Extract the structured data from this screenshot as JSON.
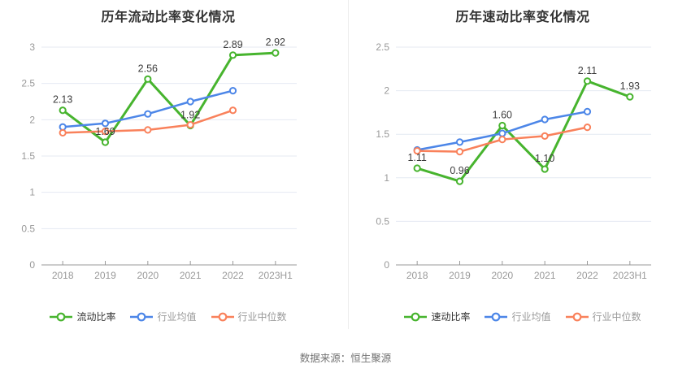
{
  "page": {
    "source": "数据来源：恒生聚源"
  },
  "colors": {
    "green": "#47b42e",
    "blue": "#4c86e8",
    "orange": "#f9815b",
    "grid": "#e4eaf2",
    "axis": "#999999",
    "axis_text": "#999999",
    "data_label": "#3c3c3c",
    "title": "#333333",
    "legend_active": "#333333",
    "legend_inactive": "#999999",
    "marker_fill": "#ffffff"
  },
  "chart_data": [
    {
      "type": "line",
      "title": "历年流动比率变化情况",
      "categories": [
        "2018",
        "2019",
        "2020",
        "2021",
        "2022",
        "2023H1"
      ],
      "y_ticks": [
        "0",
        "0.5",
        "1",
        "1.5",
        "2",
        "2.5",
        "3"
      ],
      "ylim": [
        0,
        3
      ],
      "grid": true,
      "legend_position": "bottom",
      "series": [
        {
          "name": "流动比率",
          "color_key": "green",
          "values": [
            2.13,
            1.69,
            2.56,
            1.92,
            2.89,
            2.92
          ],
          "labels": [
            "2.13",
            "1.69",
            "2.56",
            "1.92",
            "2.89",
            "2.92"
          ]
        },
        {
          "name": "行业均值",
          "color_key": "blue",
          "values": [
            1.9,
            1.95,
            2.08,
            2.25,
            2.4,
            null
          ]
        },
        {
          "name": "行业中位数",
          "color_key": "orange",
          "values": [
            1.82,
            1.84,
            1.86,
            1.93,
            2.13,
            null
          ]
        }
      ]
    },
    {
      "type": "line",
      "title": "历年速动比率变化情况",
      "categories": [
        "2018",
        "2019",
        "2020",
        "2021",
        "2022",
        "2023H1"
      ],
      "y_ticks": [
        "0",
        "0.5",
        "1",
        "1.5",
        "2",
        "2.5"
      ],
      "ylim": [
        0,
        2.5
      ],
      "grid": true,
      "legend_position": "bottom",
      "series": [
        {
          "name": "速动比率",
          "color_key": "green",
          "values": [
            1.11,
            0.96,
            1.6,
            1.1,
            2.11,
            1.93
          ],
          "labels": [
            "1.11",
            "0.96",
            "1.60",
            "1.10",
            "2.11",
            "1.93"
          ]
        },
        {
          "name": "行业均值",
          "color_key": "blue",
          "values": [
            1.32,
            1.41,
            1.51,
            1.67,
            1.76,
            null
          ]
        },
        {
          "name": "行业中位数",
          "color_key": "orange",
          "values": [
            1.31,
            1.3,
            1.44,
            1.48,
            1.58,
            null
          ]
        }
      ]
    }
  ]
}
